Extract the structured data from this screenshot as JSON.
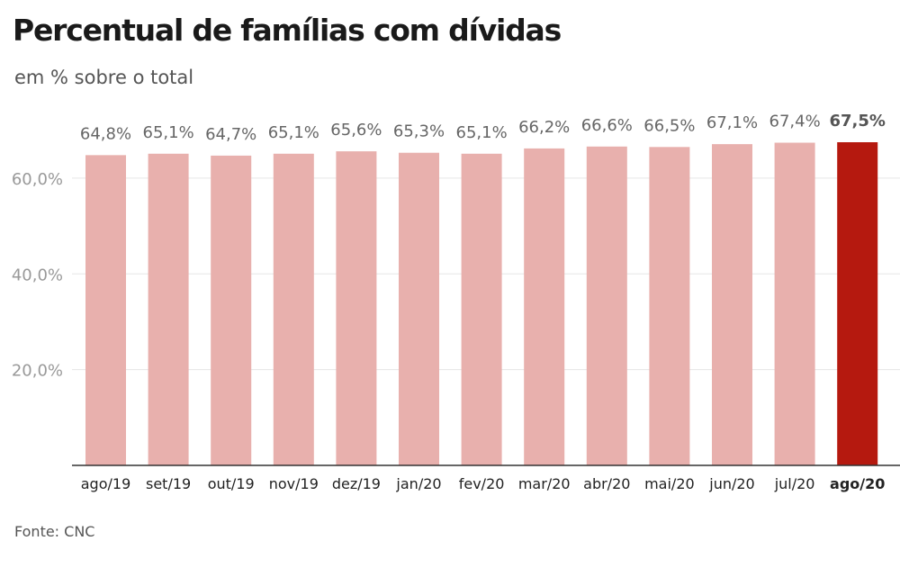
{
  "title": "Percentual de famílias com dívidas",
  "subtitle": "em % sobre o total",
  "source": "Fonte: CNC",
  "colors": {
    "bar": "#e8b0ad",
    "highlight": "#b5190f",
    "grid": "#e6e6e6",
    "axis": "#333333"
  },
  "chart_data": {
    "type": "bar",
    "categories": [
      "ago/19",
      "set/19",
      "out/19",
      "nov/19",
      "dez/19",
      "jan/20",
      "fev/20",
      "mar/20",
      "abr/20",
      "mai/20",
      "jun/20",
      "jul/20",
      "ago/20"
    ],
    "values": [
      64.8,
      65.1,
      64.7,
      65.1,
      65.6,
      65.3,
      65.1,
      66.2,
      66.6,
      66.5,
      67.1,
      67.4,
      67.5
    ],
    "data_labels": [
      "64,8%",
      "65,1%",
      "64,7%",
      "65,1%",
      "65,6%",
      "65,3%",
      "65,1%",
      "66,2%",
      "66,6%",
      "66,5%",
      "67,1%",
      "67,4%",
      "67,5%"
    ],
    "highlight_index": 12,
    "yticks": [
      20,
      40,
      60
    ],
    "ytick_labels": [
      "20,0%",
      "40,0%",
      "60,0%"
    ],
    "ylim": [
      0,
      67.5
    ],
    "grid": true
  }
}
